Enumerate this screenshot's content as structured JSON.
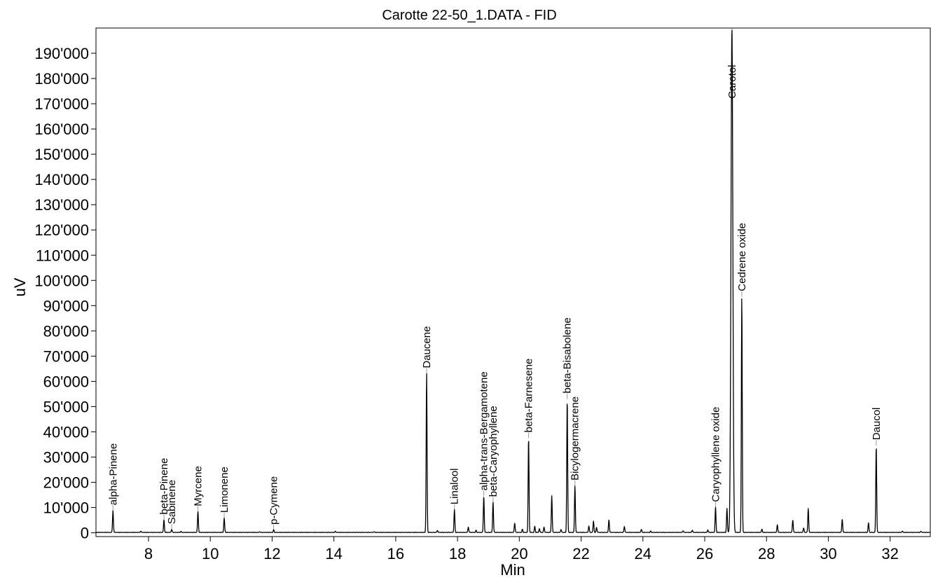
{
  "chart_data": {
    "type": "line",
    "title": "Carotte 22-50_1.DATA - FID",
    "xlabel": "Min",
    "ylabel": "uV",
    "xlim": [
      6.3,
      33.3
    ],
    "ylim": [
      -1500,
      200000
    ],
    "x_ticks": [
      8,
      10,
      12,
      14,
      16,
      18,
      20,
      22,
      24,
      26,
      28,
      30,
      32
    ],
    "x_tick_labels": [
      "8",
      "10",
      "12",
      "14",
      "16",
      "18",
      "20",
      "22",
      "24",
      "26",
      "28",
      "30",
      "32"
    ],
    "y_ticks": [
      0,
      10000,
      20000,
      30000,
      40000,
      50000,
      60000,
      70000,
      80000,
      90000,
      100000,
      110000,
      120000,
      130000,
      140000,
      150000,
      160000,
      170000,
      180000,
      190000
    ],
    "y_tick_labels": [
      "0",
      "10'000",
      "20'000",
      "30'000",
      "40'000",
      "50'000",
      "60'000",
      "70'000",
      "80'000",
      "90'000",
      "100'000",
      "110'000",
      "120'000",
      "130'000",
      "140'000",
      "150'000",
      "160'000",
      "170'000",
      "180'000",
      "190'000"
    ],
    "grid": false,
    "labeled_peaks": [
      {
        "name": "alpha-Pinene",
        "x": 6.85,
        "y": 8700
      },
      {
        "name": "beta-Pinene",
        "x": 8.5,
        "y": 5000
      },
      {
        "name": "Sabinene",
        "x": 8.75,
        "y": 1200
      },
      {
        "name": "Myrcene",
        "x": 9.6,
        "y": 8300
      },
      {
        "name": "Limonene",
        "x": 10.45,
        "y": 5700
      },
      {
        "name": "p-Cymene",
        "x": 12.05,
        "y": 1000
      },
      {
        "name": "Daucene",
        "x": 17.0,
        "y": 63000
      },
      {
        "name": "Linalool",
        "x": 17.9,
        "y": 9000
      },
      {
        "name": "alpha-trans-Bergamotene",
        "x": 18.85,
        "y": 14500
      },
      {
        "name": "beta-Caryophyllene",
        "x": 19.15,
        "y": 12000
      },
      {
        "name": "beta-Farnesene",
        "x": 20.3,
        "y": 37500
      },
      {
        "name": "beta-Bisabolene",
        "x": 21.55,
        "y": 53000
      },
      {
        "name": "Bicylogermacrene",
        "x": 21.8,
        "y": 18500
      },
      {
        "name": "Caryophyllene oxide",
        "x": 26.35,
        "y": 10000
      },
      {
        "name": "Carotol",
        "x": 26.88,
        "y": 200000
      },
      {
        "name": "Cedrene oxide",
        "x": 27.2,
        "y": 93500
      },
      {
        "name": "Daucol",
        "x": 31.55,
        "y": 34500
      }
    ],
    "minor_peaks": [
      {
        "x": 7.75,
        "y": 500
      },
      {
        "x": 9.05,
        "y": 400
      },
      {
        "x": 11.6,
        "y": 300
      },
      {
        "x": 14.05,
        "y": 400
      },
      {
        "x": 15.3,
        "y": 300
      },
      {
        "x": 17.35,
        "y": 800
      },
      {
        "x": 18.35,
        "y": 2200
      },
      {
        "x": 18.6,
        "y": 800
      },
      {
        "x": 19.85,
        "y": 3800
      },
      {
        "x": 20.1,
        "y": 1200
      },
      {
        "x": 20.5,
        "y": 2400
      },
      {
        "x": 20.65,
        "y": 1500
      },
      {
        "x": 20.8,
        "y": 2100
      },
      {
        "x": 21.05,
        "y": 14500
      },
      {
        "x": 21.35,
        "y": 1200
      },
      {
        "x": 22.25,
        "y": 2600
      },
      {
        "x": 22.4,
        "y": 4500
      },
      {
        "x": 22.5,
        "y": 2000
      },
      {
        "x": 22.9,
        "y": 5000
      },
      {
        "x": 23.4,
        "y": 2400
      },
      {
        "x": 23.95,
        "y": 1200
      },
      {
        "x": 24.25,
        "y": 500
      },
      {
        "x": 25.3,
        "y": 700
      },
      {
        "x": 25.6,
        "y": 900
      },
      {
        "x": 26.1,
        "y": 1000
      },
      {
        "x": 26.72,
        "y": 9500
      },
      {
        "x": 27.85,
        "y": 1300
      },
      {
        "x": 28.35,
        "y": 3000
      },
      {
        "x": 28.85,
        "y": 5000
      },
      {
        "x": 29.2,
        "y": 1800
      },
      {
        "x": 29.35,
        "y": 9500
      },
      {
        "x": 30.45,
        "y": 5200
      },
      {
        "x": 31.3,
        "y": 3800
      },
      {
        "x": 32.4,
        "y": 500
      },
      {
        "x": 33.0,
        "y": 400
      }
    ]
  }
}
